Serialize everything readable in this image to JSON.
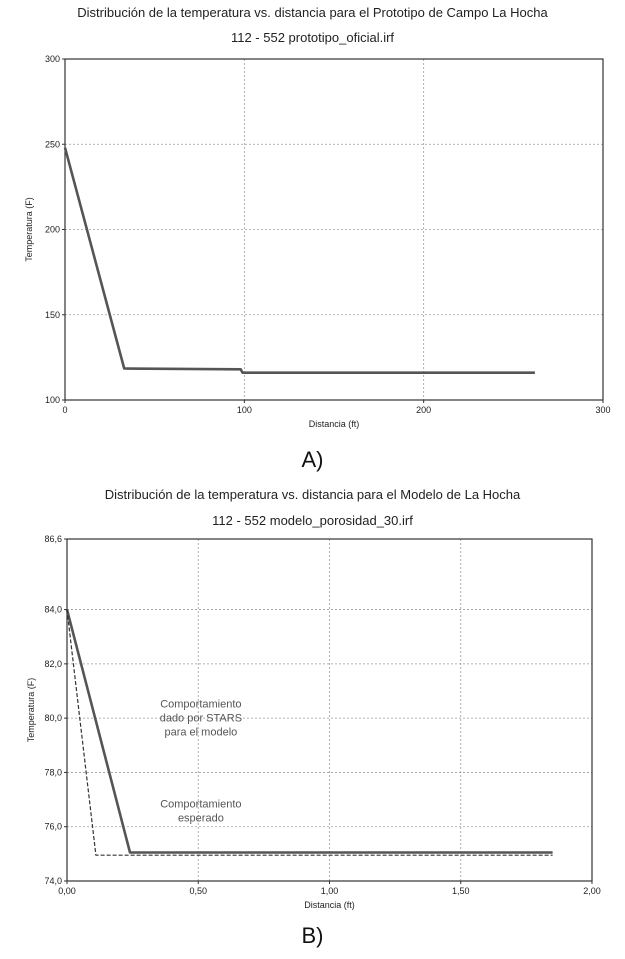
{
  "chart_data": [
    {
      "type": "line",
      "title": "Distribución de la temperatura vs. distancia para el Prototipo de Campo La Hocha",
      "subtitle": "112 - 552 prototipo_oficial.irf",
      "xlabel": "Distancia (ft)",
      "ylabel": "Temperatura (F)",
      "xlim": [
        0,
        300
      ],
      "ylim": [
        100,
        300
      ],
      "xticks": [
        "0",
        "100",
        "200",
        "300"
      ],
      "yticks": [
        "100",
        "150",
        "200",
        "250",
        "300"
      ],
      "grid": true,
      "series": [
        {
          "line_style": "solid",
          "color": "#555555",
          "x": [
            0,
            33,
            98,
            99,
            262
          ],
          "y": [
            248,
            118.5,
            118,
            116,
            116
          ]
        }
      ],
      "caption": "A)"
    },
    {
      "type": "line",
      "title": "Distribución de la temperatura vs. distancia para el Modelo de La Hocha",
      "subtitle": "112 - 552 modelo_porosidad_30.irf",
      "xlabel": "Distancia (ft)",
      "ylabel": "Temperatura (F)",
      "xlim": [
        0,
        2
      ],
      "ylim": [
        74.0,
        86.6
      ],
      "xticks": [
        "0,00",
        "0,50",
        "1,00",
        "1,50",
        "2,00"
      ],
      "yticks": [
        "74,0",
        "76,0",
        "78,0",
        "80,0",
        "82,0",
        "84,0",
        "86,6"
      ],
      "grid": true,
      "series": [
        {
          "line_style": "solid",
          "color": "#555555",
          "x": [
            0,
            0.24,
            1.85
          ],
          "y": [
            84.0,
            75.05,
            75.05
          ]
        },
        {
          "line_style": "dashed",
          "color": "#333333",
          "x": [
            0,
            0.11,
            1.85
          ],
          "y": [
            84.0,
            74.95,
            74.95
          ]
        }
      ],
      "annotations": [
        {
          "lines": [
            "Comportamiento",
            "dado por STARS",
            "para el modelo"
          ],
          "x": 0.51,
          "y": 80.4
        },
        {
          "lines": [
            "Comportamiento",
            "esperado"
          ],
          "x": 0.51,
          "y": 76.7
        }
      ],
      "caption": "B)"
    }
  ]
}
